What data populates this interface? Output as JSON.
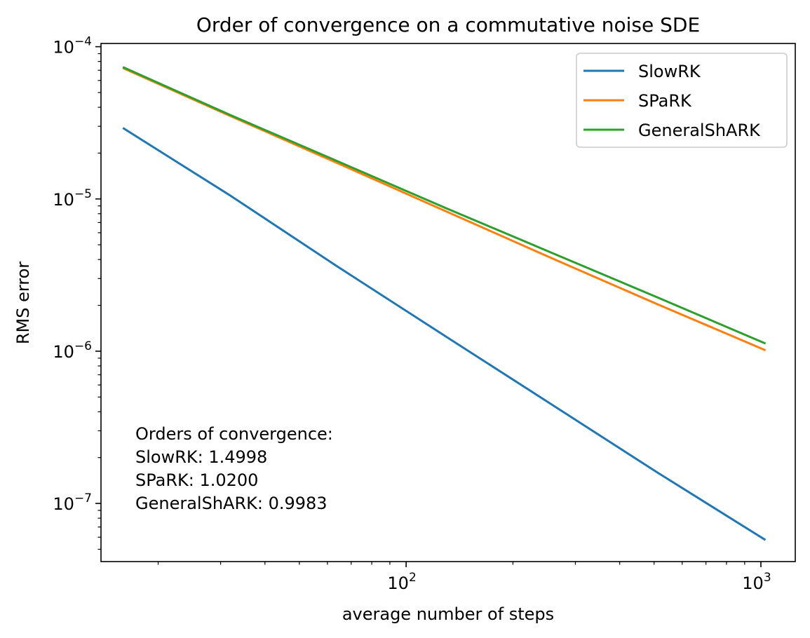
{
  "chart_data": {
    "type": "line",
    "scale": {
      "x": "log",
      "y": "log"
    },
    "title": "Order of convergence on a commutative noise SDE",
    "xlabel": "average number of steps",
    "ylabel": "RMS error",
    "xlim": [
      13.8,
      1250
    ],
    "ylim": [
      4.15e-08,
      0.000105
    ],
    "x_major_ticks": [
      {
        "value": 100,
        "base": "10",
        "exp": "2"
      },
      {
        "value": 1000,
        "base": "10",
        "exp": "3"
      }
    ],
    "y_major_ticks": [
      {
        "value": 1e-07,
        "base": "10",
        "exp": "−7"
      },
      {
        "value": 1e-06,
        "base": "10",
        "exp": "−6"
      },
      {
        "value": 1e-05,
        "base": "10",
        "exp": "−5"
      },
      {
        "value": 0.0001,
        "base": "10",
        "exp": "−4"
      }
    ],
    "legend_position": "top-right",
    "series": [
      {
        "name": "SlowRK",
        "color": "#1f77b4",
        "x": [
          16,
          32,
          64,
          128,
          256,
          512,
          1024
        ],
        "y": [
          2.9e-05,
          1.05e-05,
          3.6e-06,
          1.27e-06,
          4.5e-07,
          1.59e-07,
          5.8e-08
        ]
      },
      {
        "name": "SPaRK",
        "color": "#ff7f0e",
        "x": [
          16,
          32,
          64,
          128,
          256,
          512,
          1024
        ],
        "y": [
          7.2e-05,
          3.5e-05,
          1.72e-05,
          8.4e-06,
          4.1e-06,
          2.03e-06,
          1.02e-06
        ]
      },
      {
        "name": "GeneralShARK",
        "color": "#2ca02c",
        "x": [
          16,
          32,
          64,
          128,
          256,
          512,
          1024
        ],
        "y": [
          7.3e-05,
          3.55e-05,
          1.77e-05,
          8.8e-06,
          4.45e-06,
          2.25e-06,
          1.13e-06
        ]
      }
    ],
    "annotation": {
      "lines": [
        "Orders of convergence:",
        "SlowRK: 1.4998",
        "SPaRK: 1.0200",
        "GeneralShARK: 0.9983"
      ]
    }
  }
}
